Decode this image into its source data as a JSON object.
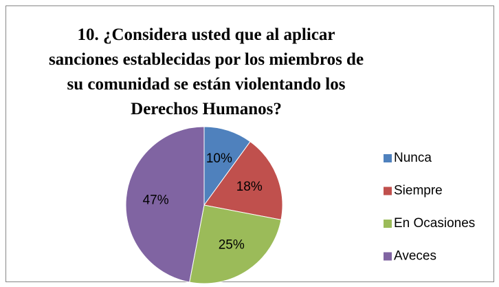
{
  "chart_data": {
    "type": "pie",
    "title": [
      "10. ¿Considera usted que al aplicar",
      "sanciones establecidas por los miembros de",
      "su comunidad se están violentando los",
      "Derechos Humanos?"
    ],
    "categories": [
      "Nunca",
      "Siempre",
      "En Ocasiones",
      "Aveces"
    ],
    "values": [
      10,
      18,
      25,
      47
    ],
    "value_labels": [
      "10%",
      "18%",
      "25%",
      "47%"
    ],
    "colors": [
      "#4f81bd",
      "#c0504d",
      "#9bbb59",
      "#8064a2"
    ],
    "legend": "right"
  }
}
